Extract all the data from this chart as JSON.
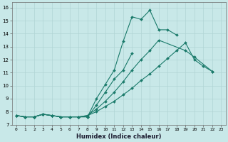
{
  "xlabel": "Humidex (Indice chaleur)",
  "bg_color": "#c8e8e8",
  "line_color": "#1a7a6a",
  "grid_color": "#b0d4d4",
  "xlim": [
    -0.5,
    23.5
  ],
  "ylim": [
    7,
    16.4
  ],
  "xtick_labels": [
    "0",
    "1",
    "2",
    "3",
    "4",
    "5",
    "6",
    "7",
    "8",
    "9",
    "10",
    "11",
    "12",
    "13",
    "14",
    "15",
    "16",
    "17",
    "18",
    "19",
    "20",
    "21",
    "22",
    "23"
  ],
  "ytick_labels": [
    "7",
    "8",
    "9",
    "10",
    "11",
    "12",
    "13",
    "14",
    "15",
    "16"
  ],
  "series": [
    {
      "x": [
        0,
        1,
        2,
        3,
        4,
        5,
        6,
        7,
        8,
        9,
        10,
        11,
        12,
        13,
        14,
        15,
        16,
        17,
        18
      ],
      "y": [
        7.7,
        7.6,
        7.6,
        7.8,
        7.7,
        7.6,
        7.6,
        7.6,
        7.6,
        9.0,
        10.1,
        11.2,
        13.4,
        15.3,
        15.1,
        15.8,
        14.3,
        14.3,
        13.9
      ]
    },
    {
      "x": [
        0,
        1,
        2,
        3,
        4,
        5,
        6,
        7,
        8,
        9,
        10,
        11,
        12,
        13
      ],
      "y": [
        7.7,
        7.6,
        7.6,
        7.8,
        7.7,
        7.6,
        7.6,
        7.6,
        7.6,
        8.5,
        9.5,
        10.5,
        11.2,
        12.5
      ]
    },
    {
      "x": [
        0,
        1,
        2,
        3,
        4,
        5,
        6,
        7,
        8,
        9,
        10,
        11,
        12,
        13,
        14,
        15,
        16,
        19,
        20,
        22
      ],
      "y": [
        7.7,
        7.6,
        7.6,
        7.8,
        7.7,
        7.6,
        7.6,
        7.6,
        7.7,
        8.2,
        8.8,
        9.5,
        10.3,
        11.2,
        12.0,
        12.7,
        13.5,
        12.7,
        12.2,
        11.1
      ]
    },
    {
      "x": [
        0,
        1,
        2,
        3,
        4,
        5,
        6,
        7,
        8,
        9,
        10,
        11,
        12,
        13,
        14,
        15,
        16,
        17,
        18,
        19,
        20,
        21,
        22
      ],
      "y": [
        7.7,
        7.6,
        7.6,
        7.8,
        7.7,
        7.6,
        7.6,
        7.6,
        7.7,
        8.0,
        8.4,
        8.8,
        9.3,
        9.8,
        10.4,
        10.9,
        11.5,
        12.1,
        12.7,
        13.3,
        12.0,
        11.5,
        11.1
      ]
    }
  ]
}
